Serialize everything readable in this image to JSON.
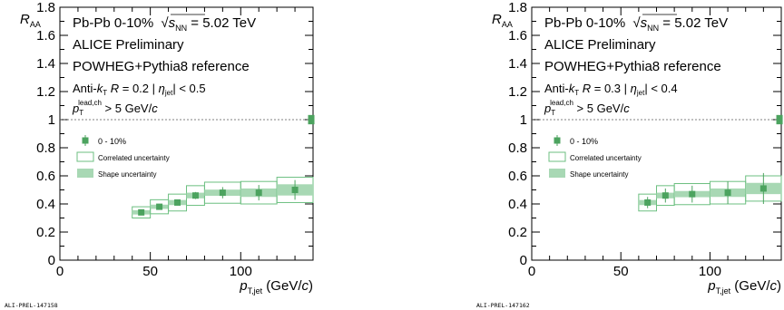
{
  "colors": {
    "marker": "#4ca35f",
    "correlated_edge": "#6cbf80",
    "shape_fill": "#a8d8b4"
  },
  "chart_data": [
    {
      "type": "scatter",
      "ylabel_main": "R",
      "ylabel_sub": "AA",
      "xlabel_main": "p",
      "xlabel_sub": "T,jet",
      "xlabel_unit_pre": "(GeV/",
      "xlabel_unit_c": "c",
      "xlabel_unit_post": ")",
      "xlim": [
        0,
        140
      ],
      "ylim": [
        0,
        1.8
      ],
      "x_ticks": [
        "0",
        "50",
        "100"
      ],
      "y_ticks": [
        "0",
        "0.2",
        "0.4",
        "0.6",
        "0.8",
        "1",
        "1.2",
        "1.4",
        "1.6",
        "1.8"
      ],
      "reference_line": 1,
      "grid": false,
      "annotations": {
        "system": "Pb-Pb  0-10%",
        "energy_sqrt": "s",
        "energy_sub": "NN",
        "energy_value": " = 5.02 TeV",
        "preliminary": "ALICE Preliminary",
        "reference": "POWHEG+Pythia8 reference",
        "algo_pre": "Anti-",
        "algo_k": "k",
        "algo_t": "T",
        "radius_r": "R",
        "radius_value": " = 0.2  |",
        "eta_symbol": "η",
        "eta_sub": "jet",
        "eta_cut": "| < 0.5",
        "lead_p": "p",
        "lead_sup": "lead,ch",
        "lead_sub": "T",
        "lead_cut": "> 5 GeV/",
        "lead_c": "c"
      },
      "legend": {
        "placement": "middle-left",
        "entries": [
          "0 - 10%",
          "Correlated uncertainty",
          "Shape uncertainty"
        ]
      },
      "norm_box": {
        "x": 139,
        "y": 1.0,
        "half_height": 0.03
      },
      "series": [
        {
          "name": "0 - 10%",
          "x": [
            45,
            55,
            65,
            75,
            90,
            110,
            130
          ],
          "bin_low": [
            40,
            50,
            60,
            70,
            80,
            100,
            120
          ],
          "bin_high": [
            50,
            60,
            70,
            80,
            100,
            120,
            140
          ],
          "y": [
            0.34,
            0.38,
            0.41,
            0.46,
            0.48,
            0.48,
            0.5
          ],
          "stat_err": [
            0.015,
            0.015,
            0.02,
            0.025,
            0.04,
            0.055,
            0.07
          ],
          "corr_err": [
            0.04,
            0.05,
            0.06,
            0.07,
            0.075,
            0.08,
            0.09
          ],
          "shape_err": [
            0.015,
            0.015,
            0.018,
            0.02,
            0.022,
            0.03,
            0.04
          ]
        }
      ],
      "footer_label": "ALI-PREL-147158"
    },
    {
      "type": "scatter",
      "ylabel_main": "R",
      "ylabel_sub": "AA",
      "xlabel_main": "p",
      "xlabel_sub": "T,jet",
      "xlabel_unit_pre": "(GeV/",
      "xlabel_unit_c": "c",
      "xlabel_unit_post": ")",
      "xlim": [
        0,
        140
      ],
      "ylim": [
        0,
        1.8
      ],
      "x_ticks": [
        "0",
        "50",
        "100"
      ],
      "y_ticks": [
        "0",
        "0.2",
        "0.4",
        "0.6",
        "0.8",
        "1",
        "1.2",
        "1.4",
        "1.6",
        "1.8"
      ],
      "reference_line": 1,
      "grid": false,
      "annotations": {
        "system": "Pb-Pb  0-10%",
        "energy_sqrt": "s",
        "energy_sub": "NN",
        "energy_value": " = 5.02 TeV",
        "preliminary": "ALICE Preliminary",
        "reference": "POWHEG+Pythia8 reference",
        "algo_pre": "Anti-",
        "algo_k": "k",
        "algo_t": "T",
        "radius_r": "R",
        "radius_value": " = 0.3  |",
        "eta_symbol": "η",
        "eta_sub": "jet",
        "eta_cut": "| < 0.4",
        "lead_p": "p",
        "lead_sup": "lead,ch",
        "lead_sub": "T",
        "lead_cut": "> 5 GeV/",
        "lead_c": "c"
      },
      "legend": {
        "placement": "middle-left",
        "entries": [
          "0 - 10%",
          "Correlated uncertainty",
          "Shape uncertainty"
        ]
      },
      "norm_box": {
        "x": 139,
        "y": 1.0,
        "half_height": 0.03
      },
      "series": [
        {
          "name": "0 - 10%",
          "x": [
            65,
            75,
            90,
            110,
            130
          ],
          "bin_low": [
            60,
            70,
            80,
            100,
            120
          ],
          "bin_high": [
            70,
            80,
            100,
            120,
            140
          ],
          "y": [
            0.41,
            0.46,
            0.47,
            0.48,
            0.51
          ],
          "stat_err": [
            0.04,
            0.05,
            0.06,
            0.08,
            0.11
          ],
          "corr_err": [
            0.06,
            0.07,
            0.075,
            0.08,
            0.09
          ],
          "shape_err": [
            0.018,
            0.02,
            0.022,
            0.03,
            0.04
          ]
        }
      ],
      "footer_label": "ALI-PREL-147162"
    }
  ]
}
